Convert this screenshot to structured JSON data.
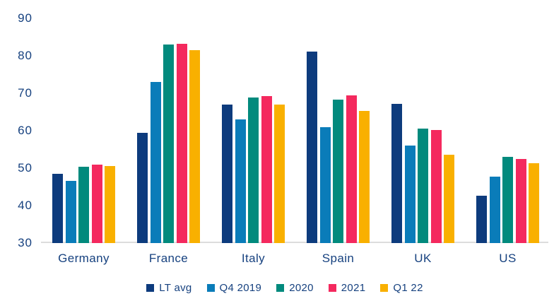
{
  "chart_data": {
    "type": "bar",
    "title": "",
    "xlabel": "",
    "ylabel": "",
    "categories": [
      "Germany",
      "France",
      "Italy",
      "Spain",
      "UK",
      "US"
    ],
    "series": [
      {
        "name": "LT avg",
        "color": "#0d3b7d",
        "values": [
          48.4,
          59.5,
          67.0,
          81.2,
          67.2,
          42.7
        ]
      },
      {
        "name": "Q4 2019",
        "color": "#0a7cb9",
        "values": [
          46.6,
          73.0,
          63.0,
          61.0,
          56.0,
          47.7
        ]
      },
      {
        "name": "2020",
        "color": "#028a7d",
        "values": [
          50.3,
          83.0,
          68.8,
          68.3,
          60.5,
          53.1
        ]
      },
      {
        "name": "2021",
        "color": "#f4295e",
        "values": [
          51.0,
          83.3,
          69.2,
          69.4,
          60.2,
          52.4
        ]
      },
      {
        "name": "Q1 22",
        "color": "#f9b000",
        "values": [
          50.6,
          81.5,
          67.0,
          65.2,
          53.6,
          51.4
        ]
      }
    ],
    "ylim": [
      30,
      90
    ],
    "yticks": [
      30,
      40,
      50,
      60,
      70,
      80,
      90
    ],
    "grid": false,
    "legend_position": "bottom",
    "axis_line_color": "#dcdcdc",
    "label_color": "#16417f",
    "background_color": "#ffffff"
  }
}
